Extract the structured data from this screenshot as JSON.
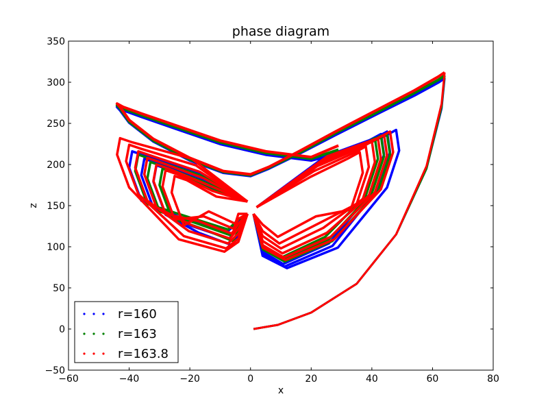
{
  "chart_data": {
    "type": "scatter",
    "title": "phase diagram",
    "xlabel": "x",
    "ylabel": "z",
    "xlim": [
      -60,
      80
    ],
    "ylim": [
      -50,
      350
    ],
    "x_ticks": [
      "−60",
      "−40",
      "−20",
      "0",
      "20",
      "40",
      "60",
      "80"
    ],
    "y_ticks": [
      "−50",
      "0",
      "50",
      "100",
      "150",
      "200",
      "250",
      "300",
      "350"
    ],
    "grid": false,
    "legend_position": "lower-left",
    "series": [
      {
        "name": "r=160",
        "color": "#0000ff",
        "transient": [
          [
            1,
            0
          ],
          [
            9,
            5
          ],
          [
            20,
            20
          ],
          [
            35,
            55
          ],
          [
            48,
            115
          ],
          [
            58,
            195
          ],
          [
            63,
            268
          ],
          [
            64,
            305
          ]
        ],
        "outer_loop": [
          [
            64,
            305
          ],
          [
            62,
            300
          ],
          [
            54,
            284
          ],
          [
            42,
            262
          ],
          [
            28,
            236
          ],
          [
            16,
            213
          ],
          [
            6,
            195
          ],
          [
            0,
            186
          ],
          [
            -9,
            190
          ],
          [
            -20,
            205
          ],
          [
            -32,
            228
          ],
          [
            -40,
            251
          ],
          [
            -43,
            266
          ],
          [
            -44,
            270
          ],
          [
            -42,
            266
          ],
          [
            -36,
            258
          ],
          [
            -25,
            244
          ],
          [
            -10,
            225
          ],
          [
            5,
            212
          ],
          [
            20,
            205
          ],
          [
            29,
            213
          ]
        ],
        "right_wings": [
          [
            43,
            237
          ],
          [
            45,
            240
          ],
          [
            48,
            242
          ]
        ],
        "right_low": [
          79,
          76,
          74
        ],
        "left_wings": [
          [
            -39,
            216
          ],
          [
            -35,
            207
          ],
          [
            -31,
            199
          ]
        ],
        "left_low": [
          118,
          110,
          102
        ]
      },
      {
        "name": "r=163",
        "color": "#008000",
        "transient": [
          [
            1,
            0
          ],
          [
            9,
            5
          ],
          [
            20,
            20
          ],
          [
            35,
            55
          ],
          [
            48,
            115
          ],
          [
            58,
            195
          ],
          [
            63,
            270
          ],
          [
            64,
            308
          ]
        ],
        "outer_loop": [
          [
            64,
            308
          ],
          [
            62,
            303
          ],
          [
            54,
            287
          ],
          [
            42,
            264
          ],
          [
            28,
            238
          ],
          [
            16,
            214
          ],
          [
            6,
            196
          ],
          [
            0,
            187
          ],
          [
            -9,
            191
          ],
          [
            -20,
            206
          ],
          [
            -32,
            229
          ],
          [
            -40,
            252
          ],
          [
            -43,
            268
          ],
          [
            -44,
            272
          ],
          [
            -42,
            268
          ],
          [
            -36,
            260
          ],
          [
            -25,
            246
          ],
          [
            -10,
            227
          ],
          [
            5,
            214
          ],
          [
            20,
            207
          ],
          [
            29,
            218
          ]
        ],
        "right_wings": [
          [
            41,
            232
          ],
          [
            43,
            235
          ],
          [
            45,
            237
          ]
        ],
        "right_low": [
          87,
          84,
          82
        ],
        "left_wings": [
          [
            -37,
            212
          ],
          [
            -33,
            203
          ],
          [
            -29,
            195
          ]
        ],
        "left_low": [
          121,
          114,
          107
        ]
      },
      {
        "name": "r=163.8",
        "color": "#ff0000",
        "transient": [
          [
            1,
            0
          ],
          [
            9,
            5
          ],
          [
            20,
            20
          ],
          [
            35,
            55
          ],
          [
            48,
            115
          ],
          [
            58,
            198
          ],
          [
            63,
            274
          ],
          [
            64,
            312
          ]
        ],
        "outer_loop": [
          [
            64,
            312
          ],
          [
            62,
            307
          ],
          [
            54,
            290
          ],
          [
            42,
            267
          ],
          [
            28,
            240
          ],
          [
            16,
            216
          ],
          [
            6,
            197
          ],
          [
            0,
            188
          ],
          [
            -9,
            192
          ],
          [
            -20,
            208
          ],
          [
            -32,
            231
          ],
          [
            -40,
            254
          ],
          [
            -43,
            270
          ],
          [
            -44,
            274
          ],
          [
            -42,
            270
          ],
          [
            -36,
            262
          ],
          [
            -25,
            248
          ],
          [
            -10,
            229
          ],
          [
            5,
            216
          ],
          [
            20,
            209
          ],
          [
            29,
            223
          ]
        ],
        "right_wings": [
          [
            36,
            215
          ],
          [
            38,
            222
          ],
          [
            40,
            228
          ],
          [
            42,
            232
          ],
          [
            44,
            236
          ],
          [
            46,
            240
          ]
        ],
        "right_low": [
          112,
          104,
          98,
          92,
          87,
          84
        ],
        "left_wings": [
          [
            -43,
            232
          ],
          [
            -40,
            224
          ],
          [
            -37,
            216
          ],
          [
            -34,
            208
          ],
          [
            -31,
            200
          ],
          [
            -28,
            193
          ],
          [
            -25,
            186
          ]
        ],
        "left_low": [
          94,
          98,
          104,
          110,
          116,
          122,
          128
        ]
      }
    ]
  }
}
